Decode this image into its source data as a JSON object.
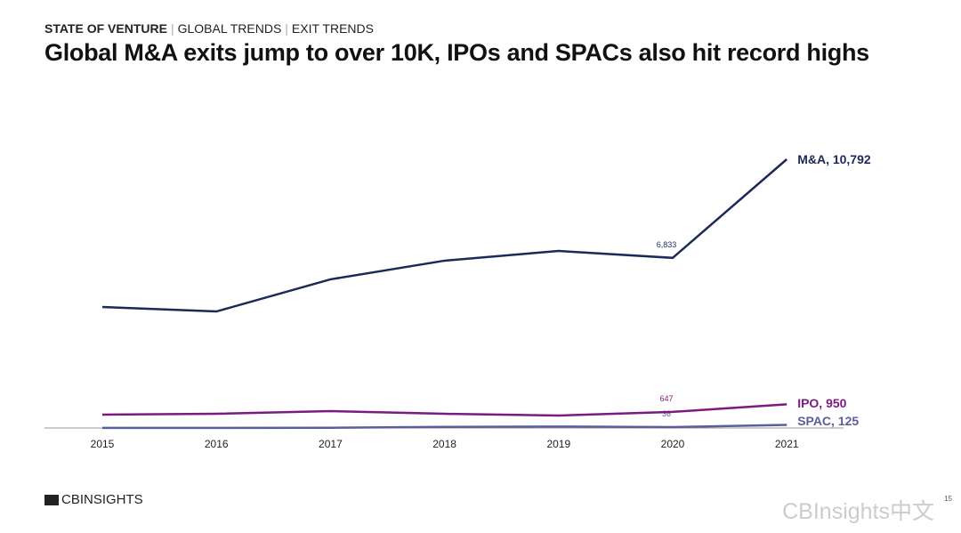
{
  "header": {
    "breadcrumb": [
      "STATE OF VENTURE",
      "GLOBAL TRENDS",
      "EXIT TRENDS"
    ],
    "title": "Global M&A exits jump to over 10K, IPOs and SPACs also hit record highs"
  },
  "footer": {
    "logo": "CBINSIGHTS",
    "page": "15",
    "watermark": "CBInsights中文"
  },
  "chart_data": {
    "type": "line",
    "title": "",
    "x": [
      "2015",
      "2016",
      "2017",
      "2018",
      "2019",
      "2020",
      "2021"
    ],
    "ylim": [
      0,
      11000
    ],
    "grid": false,
    "series": [
      {
        "name": "M&A",
        "color": "#1b2a57",
        "values": [
          4860,
          4680,
          5970,
          6720,
          7110,
          6833,
          10792
        ],
        "end_label": "M&A, 10,792",
        "point_labels": {
          "2020": "6,833"
        }
      },
      {
        "name": "IPO",
        "color": "#7b1a7f",
        "values": [
          536,
          570,
          680,
          570,
          500,
          647,
          950
        ],
        "end_label": "IPO, 950",
        "point_labels": {
          "2020": "647"
        }
      },
      {
        "name": "SPAC",
        "color": "#5a5f99",
        "values": [
          5,
          5,
          10,
          45,
          60,
          36,
          125
        ],
        "end_label": "SPAC, 125",
        "point_labels": {
          "2020": "36"
        }
      }
    ]
  }
}
